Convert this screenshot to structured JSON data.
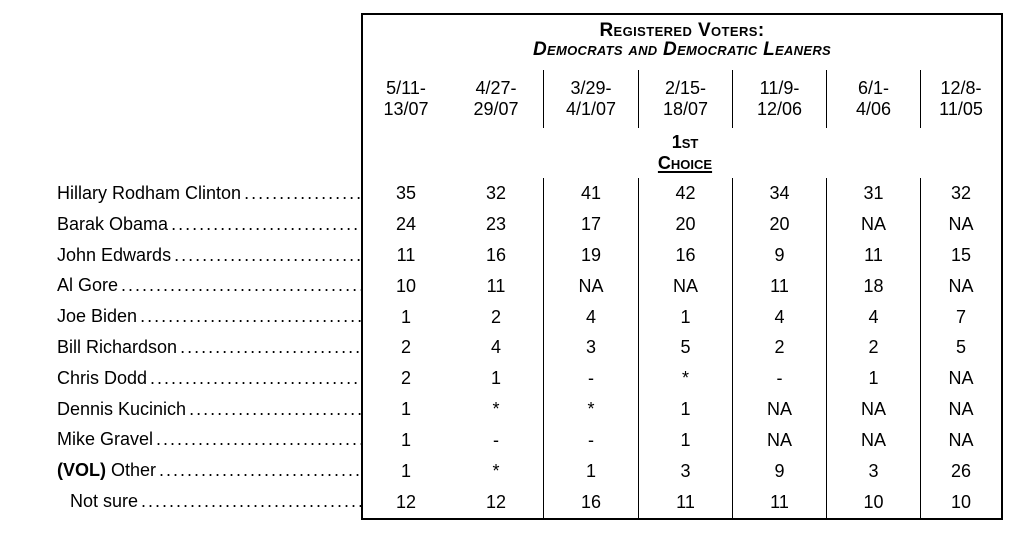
{
  "table": {
    "title_line1": "Registered Voters:",
    "title_line2": "Democrats and Democratic Leaners",
    "choice_header": {
      "line1": "1st",
      "line2": "Choice"
    },
    "date_columns": [
      {
        "line1": "5/11-",
        "line2": "13/07"
      },
      {
        "line1": "4/27-",
        "line2": "29/07"
      },
      {
        "line1": "3/29-",
        "line2": "4/1/07"
      },
      {
        "line1": "2/15-",
        "line2": "18/07"
      },
      {
        "line1": "11/9-",
        "line2": "12/06"
      },
      {
        "line1": "6/1-",
        "line2": "4/06"
      },
      {
        "line1": "12/8-",
        "line2": "11/05"
      }
    ],
    "rows": [
      {
        "label_parts": [
          {
            "text": "Hillary Rodham Clinton"
          }
        ],
        "values": [
          "35",
          "32",
          "41",
          "42",
          "34",
          "31",
          "32"
        ]
      },
      {
        "label_parts": [
          {
            "text": "Barak Obama"
          }
        ],
        "values": [
          "24",
          "23",
          "17",
          "20",
          "20",
          "NA",
          "NA"
        ]
      },
      {
        "label_parts": [
          {
            "text": "John Edwards"
          }
        ],
        "values": [
          "11",
          "16",
          "19",
          "16",
          "9",
          "11",
          "15"
        ]
      },
      {
        "label_parts": [
          {
            "text": "Al Gore"
          }
        ],
        "values": [
          "10",
          "11",
          "NA",
          "NA",
          "11",
          "18",
          "NA"
        ]
      },
      {
        "label_parts": [
          {
            "text": "Joe Biden"
          }
        ],
        "values": [
          "1",
          "2",
          "4",
          "1",
          "4",
          "4",
          "7"
        ]
      },
      {
        "label_parts": [
          {
            "text": "Bill Richardson"
          }
        ],
        "values": [
          "2",
          "4",
          "3",
          "5",
          "2",
          "2",
          "5"
        ]
      },
      {
        "label_parts": [
          {
            "text": "Chris Dodd"
          }
        ],
        "values": [
          "2",
          "1",
          "-",
          "*",
          "-",
          "1",
          "NA"
        ]
      },
      {
        "label_parts": [
          {
            "text": "Dennis Kucinich"
          }
        ],
        "values": [
          "1",
          "*",
          "*",
          "1",
          "NA",
          "NA",
          "NA"
        ]
      },
      {
        "label_parts": [
          {
            "text": "Mike Gravel"
          }
        ],
        "values": [
          "1",
          "-",
          "-",
          "1",
          "NA",
          "NA",
          "NA"
        ]
      },
      {
        "label_parts": [
          {
            "text": "(VOL)",
            "bold": true
          },
          {
            "text": " Other"
          }
        ],
        "values": [
          "1",
          "*",
          "1",
          "3",
          "9",
          "3",
          "26"
        ]
      },
      {
        "label_parts": [
          {
            "text": "Not sure"
          }
        ],
        "indent": true,
        "values": [
          "12",
          "12",
          "16",
          "11",
          "11",
          "10",
          "10"
        ]
      }
    ],
    "colors": {
      "text": "#000000",
      "border": "#000000",
      "background": "#ffffff"
    }
  }
}
